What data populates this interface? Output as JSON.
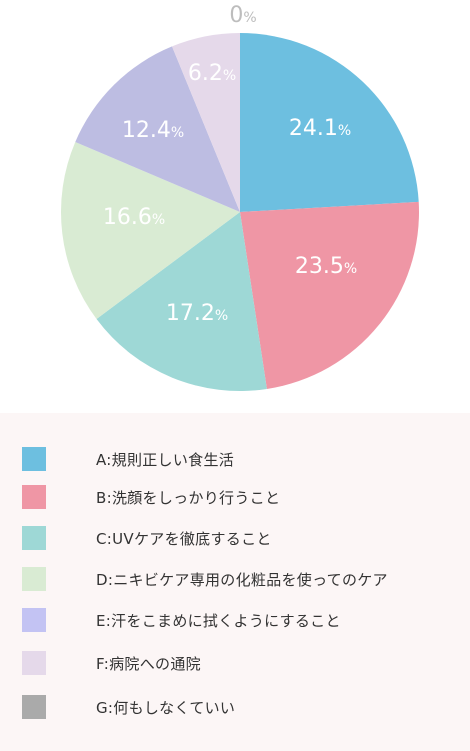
{
  "chart_data": {
    "type": "pie",
    "title": "",
    "unit": "%",
    "slices": [
      {
        "key": "A",
        "label": "A:規則正しい食生活",
        "value": 24.1,
        "value_text": "24.1",
        "color": "#6dbfe0"
      },
      {
        "key": "B",
        "label": "B:洗顔をしっかり行うこと",
        "value": 23.5,
        "value_text": "23.5",
        "color": "#ef96a5"
      },
      {
        "key": "C",
        "label": "C:UVケアを徹底すること",
        "value": 17.2,
        "value_text": "17.2",
        "color": "#9ed8d6"
      },
      {
        "key": "D",
        "label": "D:ニキビケア専用の化粧品を使ってのケア",
        "value": 16.6,
        "value_text": "16.6",
        "color": "#d9ebd3"
      },
      {
        "key": "E",
        "label": "E:汗をこまめに拭くようにすること",
        "value": 12.4,
        "value_text": "12.4",
        "color": "#bdbde2"
      },
      {
        "key": "F",
        "label": "F:病院への通院",
        "value": 6.2,
        "value_text": "6.2",
        "color": "#e5d9ea"
      },
      {
        "key": "G",
        "label": "G:何もしなくていい",
        "value": 0,
        "value_text": "0",
        "color": "#aaaaaa"
      }
    ],
    "legend_position": "bottom"
  }
}
